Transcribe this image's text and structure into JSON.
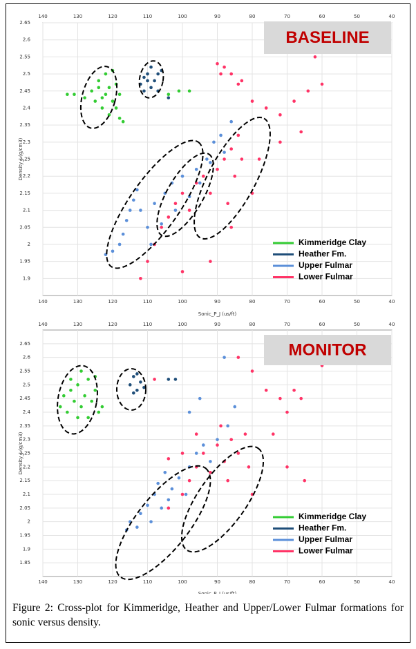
{
  "chart_data": [
    {
      "type": "scatter",
      "annotation": "BASELINE",
      "xlabel": "Sonic_P_J (us/ft)",
      "ylabel": "Density_J (g/cm3)",
      "xlim": [
        140,
        40
      ],
      "xticks": [
        140,
        130,
        120,
        110,
        100,
        90,
        80,
        70,
        60,
        50,
        40
      ],
      "ylim": [
        1.85,
        2.65
      ],
      "yticks": [
        1.9,
        1.95,
        2,
        2.05,
        2.1,
        2.15,
        2.2,
        2.25,
        2.3,
        2.35,
        2.4,
        2.45,
        2.5,
        2.55,
        2.6,
        2.65
      ],
      "grid": true,
      "legend": "lower right",
      "series": [
        {
          "name": "Kimmeridge Clay",
          "color": "#33cc33",
          "x": [
            133,
            131,
            128,
            126,
            125,
            124,
            123,
            122,
            121,
            121,
            120,
            119,
            119,
            118,
            117,
            122,
            120,
            124,
            118,
            123,
            104,
            101,
            98
          ],
          "values": [
            2.44,
            2.44,
            2.43,
            2.45,
            2.42,
            2.48,
            2.4,
            2.44,
            2.46,
            2.38,
            2.42,
            2.47,
            2.4,
            2.44,
            2.36,
            2.5,
            2.51,
            2.46,
            2.37,
            2.43,
            2.44,
            2.45,
            2.45
          ]
        },
        {
          "name": "Heather Fm.",
          "color": "#1f4e79",
          "x": [
            112,
            111,
            110,
            109,
            108,
            107,
            111,
            109,
            106,
            110,
            104,
            107
          ],
          "values": [
            2.47,
            2.49,
            2.5,
            2.52,
            2.48,
            2.5,
            2.45,
            2.46,
            2.51,
            2.48,
            2.43,
            2.45
          ]
        },
        {
          "name": "Upper Fulmar",
          "color": "#5b8fd9",
          "x": [
            122,
            120,
            118,
            117,
            116,
            115,
            114,
            113,
            112,
            110,
            109,
            108,
            106,
            105,
            103,
            102,
            100,
            98,
            96,
            95,
            93,
            91,
            89,
            88,
            86,
            92
          ],
          "values": [
            1.97,
            1.98,
            2.0,
            2.03,
            2.07,
            2.1,
            2.13,
            2.16,
            2.1,
            2.05,
            2.0,
            2.12,
            2.06,
            2.15,
            2.18,
            2.1,
            2.2,
            2.14,
            2.22,
            2.18,
            2.25,
            2.3,
            2.32,
            2.27,
            2.36,
            2.24
          ]
        },
        {
          "name": "Lower Fulmar",
          "color": "#ff3366",
          "x": [
            112,
            110,
            108,
            106,
            104,
            102,
            100,
            98,
            96,
            94,
            92,
            90,
            88,
            86,
            85,
            84,
            83,
            87,
            90,
            89,
            88,
            86,
            84,
            80,
            76,
            72,
            68,
            64,
            62,
            60,
            66,
            72,
            78,
            80,
            86,
            92,
            100,
            83
          ],
          "values": [
            1.9,
            1.95,
            2.0,
            2.05,
            2.08,
            2.12,
            2.15,
            2.1,
            2.18,
            2.2,
            2.15,
            2.22,
            2.25,
            2.28,
            2.2,
            2.32,
            2.25,
            2.12,
            2.53,
            2.5,
            2.52,
            2.5,
            2.47,
            2.42,
            2.4,
            2.38,
            2.42,
            2.45,
            2.55,
            2.47,
            2.33,
            2.3,
            2.25,
            2.15,
            2.05,
            1.95,
            1.92,
            2.48
          ]
        }
      ]
    },
    {
      "type": "scatter",
      "annotation": "MONITOR",
      "xlabel": "Sonic_P_J (us/ft)",
      "ylabel": "Density_J (g/cm3)",
      "xlim": [
        140,
        40
      ],
      "xticks": [
        140,
        130,
        120,
        110,
        100,
        90,
        80,
        70,
        60,
        50,
        40
      ],
      "ylim": [
        1.8,
        2.7
      ],
      "yticks": [
        1.85,
        1.9,
        1.95,
        2,
        2.05,
        2.1,
        2.15,
        2.2,
        2.25,
        2.3,
        2.35,
        2.4,
        2.45,
        2.5,
        2.55,
        2.6,
        2.65
      ],
      "grid": true,
      "legend": "lower right",
      "series": [
        {
          "name": "Kimmeridge Clay",
          "color": "#33cc33",
          "x": [
            135,
            134,
            133,
            132,
            131,
            130,
            130,
            129,
            128,
            127,
            126,
            125,
            124,
            127,
            129,
            132,
            123,
            125
          ],
          "values": [
            2.42,
            2.46,
            2.4,
            2.48,
            2.44,
            2.5,
            2.38,
            2.42,
            2.46,
            2.52,
            2.44,
            2.48,
            2.4,
            2.38,
            2.55,
            2.52,
            2.42,
            2.53
          ]
        },
        {
          "name": "Heather Fm.",
          "color": "#1f4e79",
          "x": [
            115,
            114,
            113,
            112,
            113,
            111,
            114,
            104,
            102
          ],
          "values": [
            2.5,
            2.53,
            2.48,
            2.51,
            2.54,
            2.49,
            2.47,
            2.52,
            2.52
          ]
        },
        {
          "name": "Upper Fulmar",
          "color": "#5b8fd9",
          "x": [
            116,
            115,
            113,
            112,
            110,
            109,
            108,
            107,
            106,
            105,
            104,
            103,
            101,
            99,
            98,
            96,
            94,
            92,
            90,
            87,
            85,
            88,
            95,
            98
          ],
          "values": [
            1.97,
            2.0,
            1.98,
            2.03,
            2.06,
            2.0,
            2.1,
            2.14,
            2.05,
            2.18,
            2.08,
            2.12,
            2.16,
            2.1,
            2.2,
            2.25,
            2.28,
            2.22,
            2.3,
            2.35,
            2.42,
            2.6,
            2.45,
            2.4
          ]
        },
        {
          "name": "Lower Fulmar",
          "color": "#ff3366",
          "x": [
            104,
            100,
            98,
            96,
            94,
            92,
            90,
            88,
            86,
            84,
            82,
            81,
            87,
            89,
            100,
            104,
            84,
            80,
            76,
            72,
            68,
            66,
            60,
            70,
            74,
            70,
            65,
            80,
            96,
            108
          ],
          "values": [
            2.05,
            2.1,
            2.15,
            2.2,
            2.25,
            2.18,
            2.28,
            2.22,
            2.3,
            2.25,
            2.32,
            2.2,
            2.15,
            2.35,
            2.25,
            2.23,
            2.6,
            2.55,
            2.48,
            2.45,
            2.48,
            2.45,
            2.57,
            2.4,
            2.32,
            2.2,
            2.15,
            2.1,
            2.32,
            2.52
          ]
        }
      ]
    }
  ],
  "caption": "Figure 2: Cross-plot for Kimmeridge, Heather and Upper/Lower Fulmar formations for sonic versus density."
}
